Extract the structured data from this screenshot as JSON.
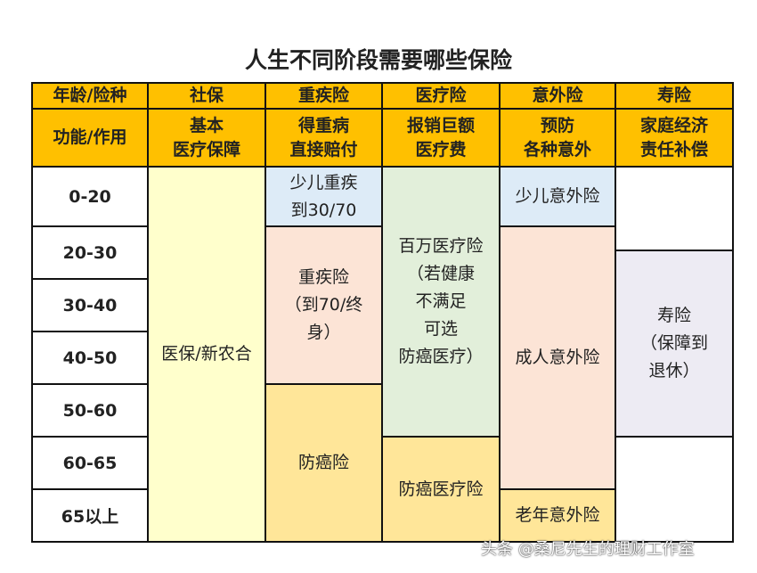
{
  "title": "人生不同阶段需要哪些保险",
  "header": {
    "row1": [
      "年龄/险种",
      "社保",
      "重疾险",
      "医疗险",
      "意外险",
      "寿险"
    ],
    "row2": [
      "功能/作用",
      "基本\n医疗保障",
      "得重病\n直接赔付",
      "报销巨额\n医疗费",
      "预防\n各种意外",
      "家庭经济\n责任补偿"
    ]
  },
  "ages": [
    "0-20",
    "20-30",
    "30-40",
    "40-50",
    "50-60",
    "60-65",
    "65以上"
  ],
  "cells": {
    "social": "医保/新农合",
    "ci_child": "少儿重疾\n到30/70",
    "ci_adult": "重疾险\n（到70/终\n身）",
    "ci_cancer": "防癌险",
    "med_million": "百万医疗险\n（若健康\n不满足\n可选\n防癌医疗）",
    "med_cancer": "防癌医疗险",
    "acc_child": "少儿意外险",
    "acc_adult": "成人意外险",
    "acc_senior": "老年意外险",
    "life": "寿险\n（保障到\n退休）"
  },
  "colors": {
    "header": "#FFC000",
    "yellow": "#FFFFCC",
    "blue": "#DDEBF7",
    "peach": "#FCE4D6",
    "green": "#E2EFDA",
    "orange": "#FFE699",
    "lavender": "#EDEBF3"
  },
  "watermark": "头条 @桑尼先生的理财工作室"
}
